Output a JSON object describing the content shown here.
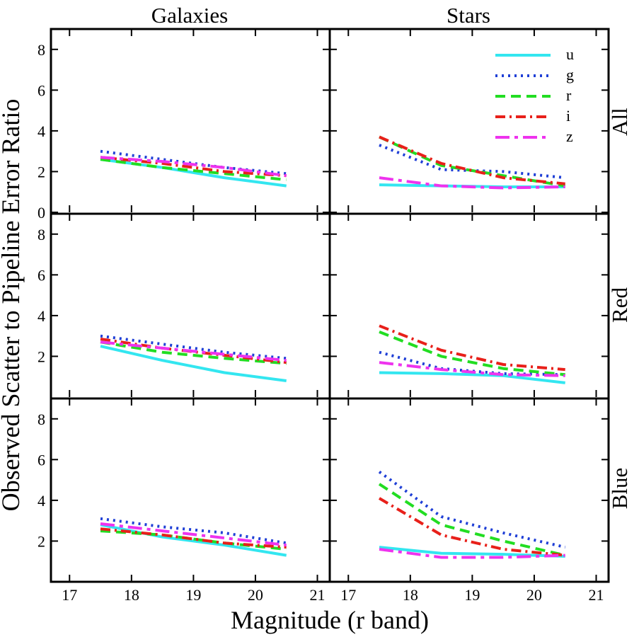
{
  "chart_data": {
    "type": "line",
    "layout": "3x2 grid",
    "xlabel": "Magnitude (r band)",
    "ylabel": "Observed Scatter to Pipeline Error Ratio",
    "column_titles": [
      "Galaxies",
      "Stars"
    ],
    "row_labels": [
      "All",
      "Red",
      "Blue"
    ],
    "xlim": [
      16.7,
      21.2
    ],
    "ylim": [
      0,
      9
    ],
    "x_ticks": [
      17,
      18,
      19,
      20,
      21
    ],
    "y_ticks": [
      0,
      2,
      4,
      6,
      8
    ],
    "x": [
      17.5,
      18.5,
      19.5,
      20.5
    ],
    "legend": {
      "location": "top-right of Stars/All panel",
      "entries": [
        "u",
        "g",
        "r",
        "i",
        "z"
      ]
    },
    "styles": {
      "u": {
        "color": "#33e6f0",
        "dash": "solid"
      },
      "g": {
        "color": "#1f3fd6",
        "dash": "dotted"
      },
      "r": {
        "color": "#22dd22",
        "dash": "dashed"
      },
      "i": {
        "color": "#e8201a",
        "dash": "dashdot"
      },
      "z": {
        "color": "#ee33ee",
        "dash": "longdashdot"
      }
    },
    "panels": [
      {
        "id": "galaxies-all",
        "row": 0,
        "col": 0,
        "series": [
          {
            "name": "u",
            "values": [
              2.6,
              2.2,
              1.7,
              1.3
            ]
          },
          {
            "name": "g",
            "values": [
              3.0,
              2.6,
              2.2,
              1.9
            ]
          },
          {
            "name": "r",
            "values": [
              2.6,
              2.2,
              1.9,
              1.6
            ]
          },
          {
            "name": "i",
            "values": [
              2.7,
              2.4,
              2.0,
              1.8
            ]
          },
          {
            "name": "z",
            "values": [
              2.7,
              2.5,
              2.2,
              1.8
            ]
          }
        ]
      },
      {
        "id": "stars-all",
        "row": 0,
        "col": 1,
        "series": [
          {
            "name": "u",
            "values": [
              1.35,
              1.3,
              1.25,
              1.25
            ]
          },
          {
            "name": "g",
            "values": [
              3.3,
              2.1,
              2.0,
              1.7
            ]
          },
          {
            "name": "r",
            "values": [
              3.7,
              2.3,
              1.8,
              1.3
            ]
          },
          {
            "name": "i",
            "values": [
              3.7,
              2.4,
              1.7,
              1.4
            ]
          },
          {
            "name": "z",
            "values": [
              1.7,
              1.3,
              1.2,
              1.25
            ]
          }
        ]
      },
      {
        "id": "galaxies-red",
        "row": 1,
        "col": 0,
        "series": [
          {
            "name": "u",
            "values": [
              2.5,
              1.8,
              1.2,
              0.8
            ]
          },
          {
            "name": "g",
            "values": [
              3.0,
              2.6,
              2.2,
              1.9
            ]
          },
          {
            "name": "r",
            "values": [
              2.7,
              2.2,
              1.9,
              1.65
            ]
          },
          {
            "name": "i",
            "values": [
              2.85,
              2.4,
              2.05,
              1.7
            ]
          },
          {
            "name": "z",
            "values": [
              2.7,
              2.4,
              2.1,
              1.8
            ]
          }
        ]
      },
      {
        "id": "stars-red",
        "row": 1,
        "col": 1,
        "series": [
          {
            "name": "u",
            "values": [
              1.2,
              1.15,
              1.05,
              0.7
            ]
          },
          {
            "name": "g",
            "values": [
              2.2,
              1.4,
              1.15,
              1.1
            ]
          },
          {
            "name": "r",
            "values": [
              3.2,
              2.0,
              1.4,
              1.1
            ]
          },
          {
            "name": "i",
            "values": [
              3.5,
              2.3,
              1.6,
              1.35
            ]
          },
          {
            "name": "z",
            "values": [
              1.7,
              1.35,
              1.1,
              1.05
            ]
          }
        ]
      },
      {
        "id": "galaxies-blue",
        "row": 2,
        "col": 0,
        "series": [
          {
            "name": "u",
            "values": [
              2.8,
              2.2,
              1.8,
              1.3
            ]
          },
          {
            "name": "g",
            "values": [
              3.1,
              2.7,
              2.4,
              1.9
            ]
          },
          {
            "name": "r",
            "values": [
              2.5,
              2.3,
              1.9,
              1.6
            ]
          },
          {
            "name": "i",
            "values": [
              2.6,
              2.3,
              1.9,
              1.7
            ]
          },
          {
            "name": "z",
            "values": [
              2.85,
              2.5,
              2.15,
              1.8
            ]
          }
        ]
      },
      {
        "id": "stars-blue",
        "row": 2,
        "col": 1,
        "series": [
          {
            "name": "u",
            "values": [
              1.7,
              1.4,
              1.35,
              1.25
            ]
          },
          {
            "name": "g",
            "values": [
              5.4,
              3.2,
              2.4,
              1.7
            ]
          },
          {
            "name": "r",
            "values": [
              4.8,
              2.8,
              2.0,
              1.3
            ]
          },
          {
            "name": "i",
            "values": [
              4.1,
              2.3,
              1.6,
              1.3
            ]
          },
          {
            "name": "z",
            "values": [
              1.6,
              1.2,
              1.2,
              1.3
            ]
          }
        ]
      }
    ]
  }
}
